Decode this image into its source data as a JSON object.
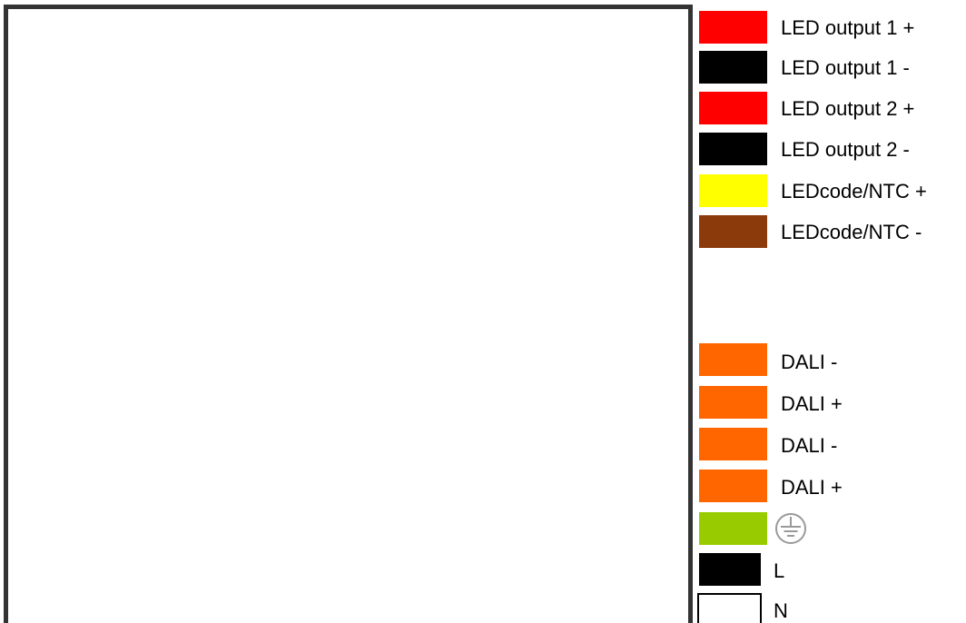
{
  "terminals": [
    {
      "id": "led-output-1-plus",
      "label": "LED output 1 +",
      "color": "#ff0000"
    },
    {
      "id": "led-output-1-minus",
      "label": "LED output 1 -",
      "color": "#000000"
    },
    {
      "id": "led-output-2-plus",
      "label": "LED output 2 +",
      "color": "#ff0000"
    },
    {
      "id": "led-output-2-minus",
      "label": "LED output 2 -",
      "color": "#000000"
    },
    {
      "id": "ledcode-ntc-plus",
      "label": "LEDcode/NTC +",
      "color": "#ffff00"
    },
    {
      "id": "ledcode-ntc-minus",
      "label": "LEDcode/NTC -",
      "color": "#8b3a0c"
    },
    {
      "id": "dali-minus-1",
      "label": "DALI -",
      "color": "#ff6600"
    },
    {
      "id": "dali-plus-1",
      "label": "DALI +",
      "color": "#ff6600"
    },
    {
      "id": "dali-minus-2",
      "label": "DALI -",
      "color": "#ff6600"
    },
    {
      "id": "dali-plus-2",
      "label": "DALI +",
      "color": "#ff6600"
    },
    {
      "id": "protective-earth",
      "label": "",
      "color": "#99cc00",
      "icon": "earth-ground-icon"
    },
    {
      "id": "line",
      "label": "L",
      "color": "#000000"
    },
    {
      "id": "neutral",
      "label": "N",
      "color": "#ffffff",
      "outlined": true
    }
  ],
  "housing": {
    "border_color": "#333333",
    "fill": "#ffffff"
  }
}
